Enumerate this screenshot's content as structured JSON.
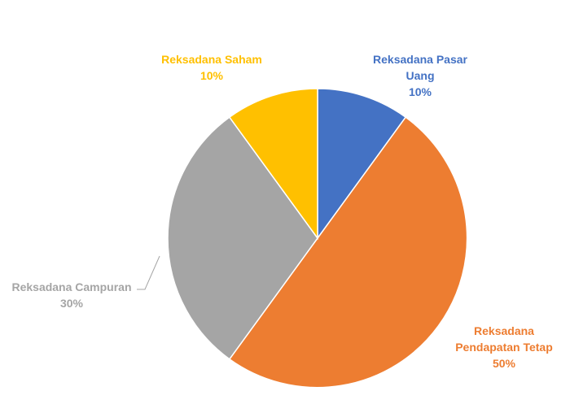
{
  "chart_data": {
    "type": "pie",
    "title": "",
    "series": [
      {
        "slices": [
          {
            "name_lines": [
              "Reksadana Pasar",
              "Uang"
            ],
            "pct_label": "10%",
            "value": 10,
            "color": "#4472C4"
          },
          {
            "name_lines": [
              "Reksadana",
              "Pendapatan Tetap"
            ],
            "pct_label": "50%",
            "value": 50,
            "color": "#ED7D31"
          },
          {
            "name_lines": [
              "Reksadana Campuran"
            ],
            "pct_label": "30%",
            "value": 30,
            "color": "#A5A5A5"
          },
          {
            "name_lines": [
              "Reksadana Saham"
            ],
            "pct_label": "10%",
            "value": 10,
            "color": "#FFC000"
          }
        ]
      }
    ],
    "legend": "none",
    "data_labels": "outside with category name and percentage"
  }
}
